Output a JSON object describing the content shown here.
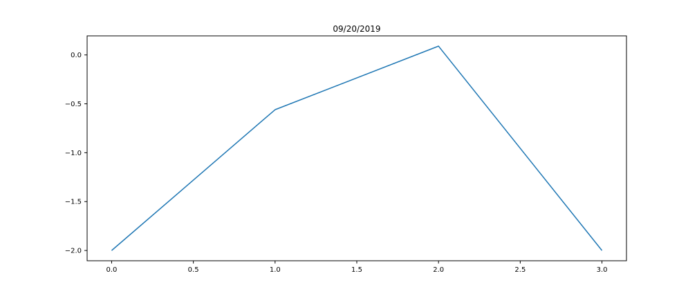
{
  "chart_data": {
    "type": "line",
    "title": "09/20/2019",
    "xlabel": "",
    "ylabel": "",
    "xlim": [
      -0.15,
      3.15
    ],
    "ylim": [
      -2.105,
      0.195
    ],
    "x_ticks": [
      0.0,
      0.5,
      1.0,
      1.5,
      2.0,
      2.5,
      3.0
    ],
    "x_tick_labels": [
      "0.0",
      "0.5",
      "1.0",
      "1.5",
      "2.0",
      "2.5",
      "3.0"
    ],
    "y_ticks": [
      -2.0,
      -1.5,
      -1.0,
      -0.5,
      0.0
    ],
    "y_tick_labels": [
      "−2.0",
      "−1.5",
      "−1.0",
      "−0.5",
      "0.0"
    ],
    "grid": false,
    "series": [
      {
        "x": [
          0,
          1,
          2,
          3
        ],
        "y": [
          -2.0,
          -0.56,
          0.09,
          -2.0
        ],
        "color": "#1f77b4"
      }
    ]
  }
}
